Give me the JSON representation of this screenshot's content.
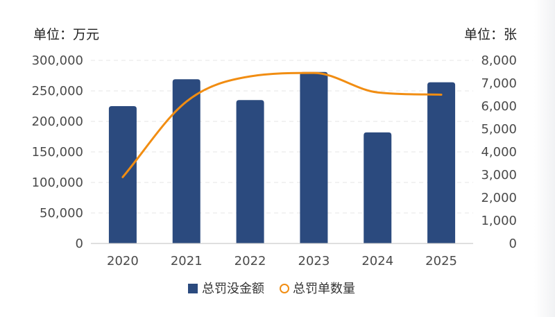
{
  "chart_data": {
    "type": "bar",
    "categories": [
      "2020",
      "2021",
      "2022",
      "2023",
      "2024",
      "2025"
    ],
    "series": [
      {
        "name": "总罚没金额",
        "type": "bar",
        "axis": "left",
        "values": [
          225000,
          269000,
          235000,
          281000,
          182000,
          264000
        ]
      },
      {
        "name": "总罚单数量",
        "type": "line",
        "axis": "right",
        "values": [
          2900,
          6200,
          7300,
          7450,
          6600,
          6500
        ]
      }
    ],
    "left_axis": {
      "unit": "单位：万元",
      "ylim": [
        0,
        300000
      ],
      "ticks": [
        "0",
        "50,000",
        "100,000",
        "150,000",
        "200,000",
        "250,000",
        "300,000"
      ]
    },
    "right_axis": {
      "unit": "单位：张",
      "ylim": [
        0,
        8000
      ],
      "ticks": [
        "0",
        "1,000",
        "2,000",
        "3,000",
        "4,000",
        "5,000",
        "6,000",
        "7,000",
        "8,000"
      ]
    },
    "grid": "dashed-horizontal",
    "legend_position": "bottom-center"
  },
  "colors": {
    "bar": "#2b4a7e",
    "line": "#f18d12",
    "grid": "#e4e4e4",
    "axis": "#cccccc"
  }
}
